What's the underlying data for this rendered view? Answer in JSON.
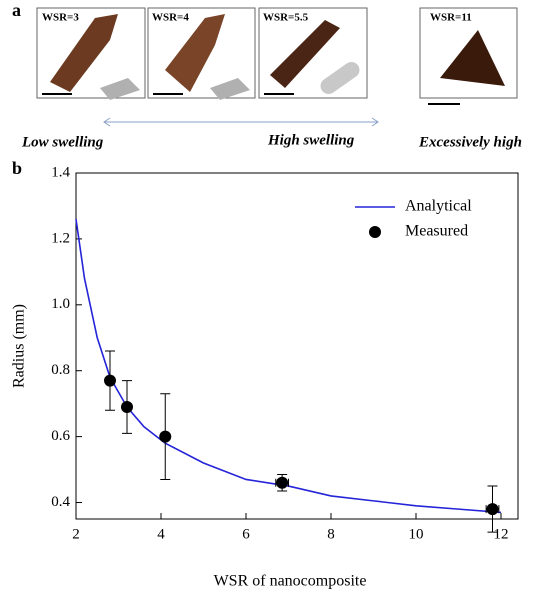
{
  "panel_a": {
    "label": "a",
    "samples": [
      "WSR=3",
      "WSR=4",
      "WSR=5.5",
      "WSR=11"
    ],
    "captions": [
      "Low swelling",
      "High swelling",
      "Excessively high"
    ]
  },
  "chart_data": {
    "type": "line",
    "panel_label": "b",
    "xlabel": "WSR of nanocomposite",
    "ylabel": "Radius (mm)",
    "xlim": [
      2,
      12.4
    ],
    "ylim": [
      0.35,
      1.4
    ],
    "xticks": [
      2,
      4,
      6,
      8,
      10,
      12
    ],
    "yticks": [
      0.4,
      0.6,
      0.8,
      {
        "value": 1,
        "label": "1.0"
      },
      1.2,
      1.4
    ],
    "legend": "upper right",
    "series": [
      {
        "name": "Analytical",
        "type": "line",
        "color": "#2424d8",
        "x": [
          2,
          2.2,
          2.5,
          2.8,
          3.2,
          3.6,
          4.1,
          5,
          6,
          7,
          8,
          9,
          10,
          11,
          12
        ],
        "values": [
          1.26,
          1.08,
          0.9,
          0.78,
          0.69,
          0.63,
          0.58,
          0.52,
          0.47,
          0.45,
          0.42,
          0.405,
          0.39,
          0.38,
          0.37
        ]
      },
      {
        "name": "Measured",
        "type": "scatter",
        "color": "#000000",
        "x": [
          2.8,
          3.2,
          4.1,
          6.85,
          11.8
        ],
        "values": [
          0.77,
          0.69,
          0.6,
          0.46,
          0.38
        ],
        "yerr": [
          0.09,
          0.08,
          0.13,
          0.025,
          0.07
        ],
        "xerr": [
          0,
          0,
          0,
          0.15,
          0.15
        ]
      }
    ]
  }
}
